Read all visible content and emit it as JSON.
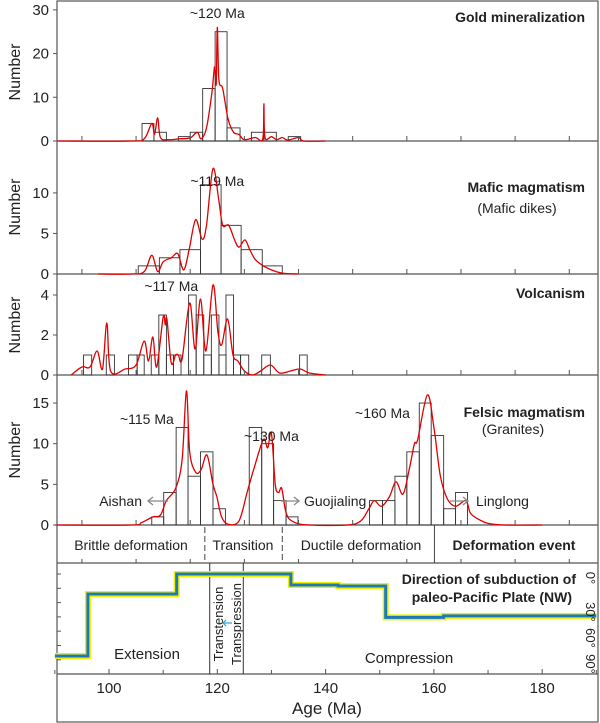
{
  "chart_data": {
    "type": "histogram",
    "xaxis": {
      "label": "Age (Ma)",
      "range": [
        90,
        190
      ],
      "ticks": [
        100,
        120,
        140,
        160,
        180
      ],
      "tick_labels": [
        "100",
        "120",
        "140",
        "160",
        "180"
      ]
    },
    "panels": [
      {
        "title": "Gold mineralization",
        "subtitle": "",
        "ylabel": "Number",
        "ylim": [
          0,
          31.8
        ],
        "yticks": [
          0,
          10,
          20,
          30
        ],
        "ytick_labels": [
          "0",
          "10",
          "20",
          "30"
        ],
        "peak_labels": [
          {
            "text": "~120 Ma",
            "age": 120
          }
        ],
        "bins": [
          [
            106.1,
            108.3,
            4
          ],
          [
            108.3,
            110.6,
            2
          ],
          [
            112.8,
            115,
            1
          ],
          [
            115,
            117.3,
            2
          ],
          [
            117.3,
            119.6,
            12
          ],
          [
            119.6,
            121.8,
            25
          ],
          [
            121.8,
            124.2,
            3
          ],
          [
            126.3,
            128.6,
            2
          ],
          [
            128.6,
            130.9,
            2
          ],
          [
            133.1,
            135.4,
            1
          ]
        ],
        "kde": [
          [
            90.5,
            0
          ],
          [
            104,
            0
          ],
          [
            106.5,
            0.5
          ],
          [
            107.9,
            4
          ],
          [
            108.4,
            1.5
          ],
          [
            109,
            5.3
          ],
          [
            109.5,
            0.8
          ],
          [
            111,
            0.3
          ],
          [
            113,
            0.5
          ],
          [
            115,
            0.7
          ],
          [
            116.3,
            2
          ],
          [
            117,
            0.5
          ],
          [
            118,
            3
          ],
          [
            119,
            11
          ],
          [
            119.5,
            17
          ],
          [
            119.8,
            13
          ],
          [
            120,
            26
          ],
          [
            120.3,
            14
          ],
          [
            121,
            12
          ],
          [
            122,
            5
          ],
          [
            123,
            2
          ],
          [
            124,
            1.5
          ],
          [
            125,
            0.3
          ],
          [
            127,
            0.8
          ],
          [
            128.4,
            0.5
          ],
          [
            128.6,
            8.5
          ],
          [
            128.8,
            0.8
          ],
          [
            130,
            1
          ],
          [
            131,
            0.3
          ],
          [
            132,
            0.8
          ],
          [
            133,
            0.2
          ],
          [
            135,
            0.8
          ],
          [
            136,
            0
          ],
          [
            140,
            0
          ]
        ],
        "annotations": []
      },
      {
        "title": "Mafic magmatism",
        "subtitle": "(Mafic dikes)",
        "ylabel": "Number",
        "ylim": [
          0,
          16.4
        ],
        "yticks": [
          0,
          5,
          10
        ],
        "ytick_labels": [
          "0",
          "5",
          "10"
        ],
        "peak_labels": [
          {
            "text": "~119 Ma",
            "age": 120
          }
        ],
        "bins": [
          [
            105.4,
            109.3,
            1
          ],
          [
            109.3,
            113.1,
            2
          ],
          [
            113.1,
            116.9,
            3
          ],
          [
            116.9,
            120.7,
            11
          ],
          [
            120.7,
            124.4,
            6
          ],
          [
            124.4,
            128.3,
            3
          ],
          [
            128.3,
            132,
            1
          ]
        ],
        "kde": [
          [
            98,
            0
          ],
          [
            104,
            0
          ],
          [
            106.5,
            0.3
          ],
          [
            107.9,
            2.3
          ],
          [
            109,
            0.3
          ],
          [
            110,
            1.5
          ],
          [
            111.5,
            2
          ],
          [
            112.7,
            2.5
          ],
          [
            113.8,
            0.5
          ],
          [
            114.8,
            3
          ],
          [
            116,
            6.7
          ],
          [
            117.2,
            4.3
          ],
          [
            118,
            6
          ],
          [
            119.2,
            13
          ],
          [
            120.3,
            9
          ],
          [
            121,
            6
          ],
          [
            122.1,
            6
          ],
          [
            123.2,
            4.2
          ],
          [
            124,
            3.3
          ],
          [
            125.1,
            4.2
          ],
          [
            126,
            3
          ],
          [
            127,
            1.8
          ],
          [
            128.5,
            1
          ],
          [
            130,
            0.5
          ],
          [
            132,
            0.1
          ],
          [
            135,
            0
          ]
        ],
        "annotations": []
      },
      {
        "title": "Volcanism",
        "subtitle": "",
        "ylabel": "Number",
        "ylim": [
          0,
          5.05
        ],
        "yticks": [
          0,
          2,
          4
        ],
        "ytick_labels": [
          "0",
          "2",
          "4"
        ],
        "peak_labels": [
          {
            "text": "~117 Ma",
            "age": 111.5
          }
        ],
        "bins": [
          [
            95.3,
            96.8,
            1
          ],
          [
            99.5,
            101,
            1
          ],
          [
            103.6,
            105.2,
            1
          ],
          [
            105.2,
            106.5,
            1
          ],
          [
            107.8,
            109.2,
            1
          ],
          [
            109.2,
            110.6,
            3
          ],
          [
            110.6,
            111.9,
            1
          ],
          [
            111.9,
            113.3,
            1
          ],
          [
            114.7,
            116.1,
            4
          ],
          [
            116.1,
            117.5,
            3
          ],
          [
            117.5,
            118.9,
            1
          ],
          [
            118.9,
            120.3,
            3
          ],
          [
            120.3,
            121.6,
            1
          ],
          [
            121.6,
            123,
            4
          ],
          [
            123,
            124.3,
            1
          ],
          [
            124.3,
            125.8,
            1
          ],
          [
            128.2,
            129.8,
            1
          ],
          [
            135.2,
            136.6,
            1
          ]
        ],
        "kde": [
          [
            93,
            0
          ],
          [
            95,
            0.4
          ],
          [
            96.5,
            0.4
          ],
          [
            97.8,
            1.2
          ],
          [
            98.8,
            0.3
          ],
          [
            99.6,
            2.6
          ],
          [
            100.3,
            0.2
          ],
          [
            103,
            0.3
          ],
          [
            105,
            0.5
          ],
          [
            106.5,
            1.7
          ],
          [
            107.3,
            0.7
          ],
          [
            108.1,
            1.9
          ],
          [
            108.8,
            0.4
          ],
          [
            110,
            2.9
          ],
          [
            110.4,
            2.5
          ],
          [
            110.7,
            2.8
          ],
          [
            111.5,
            0.6
          ],
          [
            112.3,
            1
          ],
          [
            112.8,
            1
          ],
          [
            113.5,
            0.8
          ],
          [
            114.9,
            3.6
          ],
          [
            115.9,
            1.3
          ],
          [
            116.9,
            3.8
          ],
          [
            117.9,
            1.2
          ],
          [
            119.2,
            4.5
          ],
          [
            120.1,
            2.2
          ],
          [
            120.8,
            1.5
          ],
          [
            121.9,
            2.8
          ],
          [
            122.9,
            1
          ],
          [
            123.8,
            0.7
          ],
          [
            125,
            0.2
          ],
          [
            126.5,
            0
          ],
          [
            128,
            0.2
          ],
          [
            129.8,
            0.5
          ],
          [
            131.5,
            0.1
          ],
          [
            133.5,
            0.2
          ],
          [
            135.3,
            0.3
          ],
          [
            137,
            0.1
          ],
          [
            140,
            0
          ]
        ],
        "annotations": []
      },
      {
        "title": "Felsic magmatism",
        "subtitle": "(Granites)",
        "ylabel": "Number",
        "ylim": [
          0,
          18.45
        ],
        "yticks": [
          0,
          5,
          10,
          15
        ],
        "ytick_labels": [
          "0",
          "5",
          "10",
          "15"
        ],
        "peak_labels": [
          {
            "text": "~115 Ma",
            "age": 107
          },
          {
            "text": "~130 Ma",
            "age": 130
          },
          {
            "text": "~160 Ma",
            "age": 150.5
          }
        ],
        "bins": [
          [
            107.9,
            110.1,
            1
          ],
          [
            110.1,
            112.4,
            4
          ],
          [
            112.4,
            114.6,
            12
          ],
          [
            114.6,
            116.9,
            6
          ],
          [
            116.9,
            119.2,
            9
          ],
          [
            119.2,
            121.5,
            2
          ],
          [
            125.9,
            128.2,
            12
          ],
          [
            128.2,
            130.4,
            10
          ],
          [
            130.4,
            132.7,
            3
          ],
          [
            132.7,
            134.9,
            1
          ],
          [
            148.1,
            150.5,
            3
          ],
          [
            150.5,
            152.8,
            3
          ],
          [
            152.8,
            155,
            6
          ],
          [
            155,
            157.3,
            9
          ],
          [
            157.3,
            159.5,
            15
          ],
          [
            159.5,
            161.8,
            11
          ],
          [
            161.8,
            164,
            2
          ],
          [
            164,
            166.2,
            4
          ]
        ],
        "kde": [
          [
            90,
            0
          ],
          [
            104,
            0
          ],
          [
            106,
            0.3
          ],
          [
            108.1,
            1
          ],
          [
            109.5,
            1.2
          ],
          [
            110.6,
            3
          ],
          [
            112.3,
            4.5
          ],
          [
            113.5,
            8
          ],
          [
            114.3,
            16.5
          ],
          [
            114.9,
            9
          ],
          [
            116,
            6.5
          ],
          [
            117,
            6.8
          ],
          [
            118.1,
            8.6
          ],
          [
            119.2,
            5
          ],
          [
            119.9,
            3.5
          ],
          [
            120.8,
            1
          ],
          [
            122,
            0.1
          ],
          [
            124,
            0.5
          ],
          [
            125.5,
            4
          ],
          [
            126.8,
            7
          ],
          [
            128.5,
            10.5
          ],
          [
            129.3,
            9.5
          ],
          [
            130,
            11.3
          ],
          [
            130.7,
            5
          ],
          [
            131.3,
            4
          ],
          [
            131.9,
            4.5
          ],
          [
            132.7,
            1.5
          ],
          [
            134,
            0.4
          ],
          [
            137,
            0
          ],
          [
            144,
            0
          ],
          [
            146.5,
            0.5
          ],
          [
            148,
            2
          ],
          [
            149,
            3
          ],
          [
            150.3,
            2.3
          ],
          [
            151.8,
            3.5
          ],
          [
            153,
            5.3
          ],
          [
            154.3,
            3.8
          ],
          [
            155.5,
            7
          ],
          [
            156.4,
            10
          ],
          [
            157,
            10.5
          ],
          [
            158.8,
            16
          ],
          [
            160,
            12
          ],
          [
            161.2,
            6
          ],
          [
            162.5,
            3.2
          ],
          [
            164,
            2.3
          ],
          [
            165.9,
            3
          ],
          [
            166.7,
            1.5
          ],
          [
            168,
            0.8
          ],
          [
            170,
            0.2
          ],
          [
            173,
            0
          ],
          [
            180,
            0
          ]
        ],
        "annotations": [
          {
            "text": "Aishan",
            "direction": "left"
          },
          {
            "text": "Guojialing",
            "direction": "right"
          },
          {
            "text": "Linglong",
            "direction": "right"
          }
        ]
      }
    ],
    "deformation": {
      "title": "Deformation event",
      "zones": [
        {
          "label": "Brittle deformation",
          "from": 90,
          "to": 117.7
        },
        {
          "label": "Transition",
          "from": 117.7,
          "to": 132
        },
        {
          "label": "Ductile deformation",
          "from": 132,
          "to": 160
        }
      ]
    },
    "subduction": {
      "title_line1": "Direction of subduction of",
      "title_line2": "paleo-Pacific Plate (NW)",
      "angle_labels": [
        "0°",
        "30°",
        "60°",
        "90°"
      ],
      "angle_values": [
        0,
        30,
        60,
        90
      ],
      "steps": [
        [
          90,
          96.1,
          86
        ],
        [
          96.1,
          112.5,
          21
        ],
        [
          112.5,
          133.6,
          0
        ],
        [
          133.6,
          142.3,
          11.5
        ],
        [
          142.3,
          151.1,
          12.6
        ],
        [
          151.1,
          161.8,
          45.5
        ],
        [
          161.8,
          190,
          44
        ]
      ],
      "regimes": [
        "Extension",
        "Transtension",
        "Transpression",
        "Compression"
      ],
      "regime_boundaries": [
        118.6,
        124.8
      ]
    },
    "colors": {
      "kde": "#e00000",
      "bar": "#333333",
      "step_line": "#1a7abf",
      "step_outline": "#f2ee00",
      "arrow": "#888888"
    }
  }
}
